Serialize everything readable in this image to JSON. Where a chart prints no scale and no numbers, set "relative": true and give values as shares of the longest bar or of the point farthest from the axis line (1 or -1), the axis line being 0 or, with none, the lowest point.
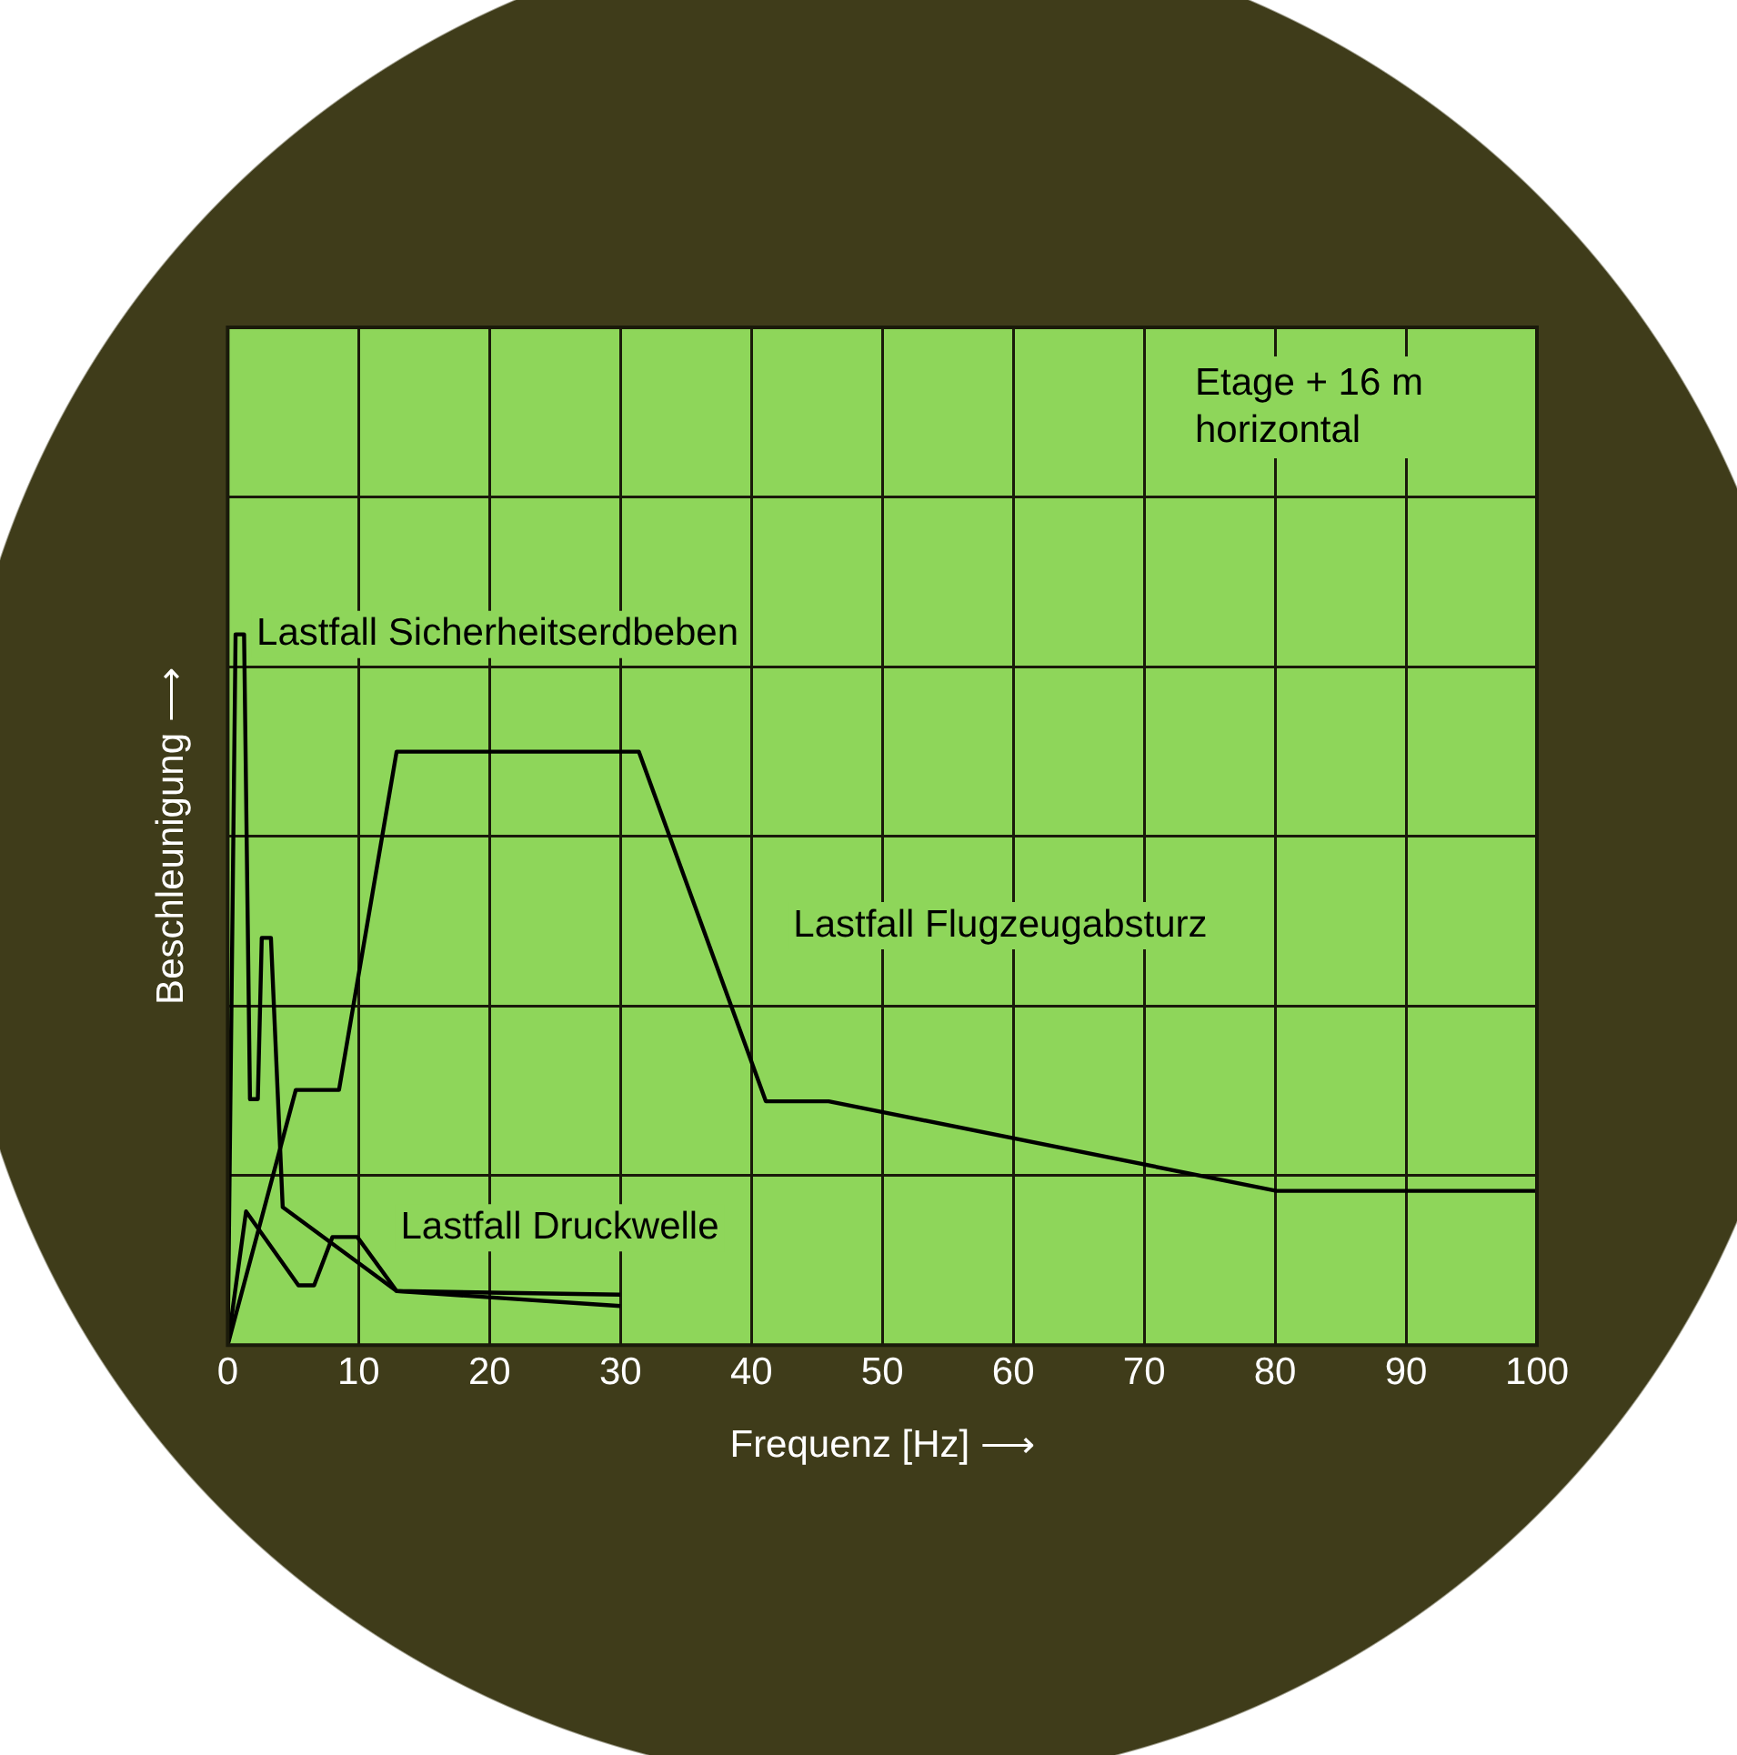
{
  "chart_data": {
    "type": "line",
    "relative": true,
    "xlabel": "Frequenz [Hz] ⟶",
    "ylabel": "Beschleunigung ⟶",
    "xlim": [
      0,
      100
    ],
    "xticks": [
      0,
      10,
      20,
      30,
      40,
      50,
      60,
      70,
      80,
      90,
      100
    ],
    "grid": true,
    "legend": false,
    "marker": "none",
    "line_style": "solid",
    "annotations": [
      "Etage + 16 m horizontal"
    ],
    "series": [
      {
        "name": "Lastfall Sicherheitserdbeben",
        "color": "#000000",
        "x": [
          0,
          0.6,
          1.25,
          1.7,
          2.3,
          2.6,
          3.3,
          4.2,
          12.9,
          30
        ],
        "values": [
          0,
          1,
          1,
          0.346,
          0.346,
          0.573,
          0.573,
          0.194,
          0.076,
          0.071
        ]
      },
      {
        "name": "Lastfall Druckwelle",
        "color": "#000000",
        "x": [
          0,
          1.4,
          5.4,
          6.6,
          8,
          9.9,
          12.9,
          30
        ],
        "values": [
          0,
          0.188,
          0.084,
          0.084,
          0.152,
          0.152,
          0.076,
          0.055
        ]
      },
      {
        "name": "Lastfall Flugzeugabsturz",
        "color": "#000000",
        "x": [
          0,
          5.2,
          8.5,
          12.9,
          31.4,
          41.1,
          45.9,
          80.1,
          100
        ],
        "values": [
          0,
          0.359,
          0.359,
          0.835,
          0.835,
          0.343,
          0.343,
          0.217,
          0.217
        ]
      }
    ]
  }
}
